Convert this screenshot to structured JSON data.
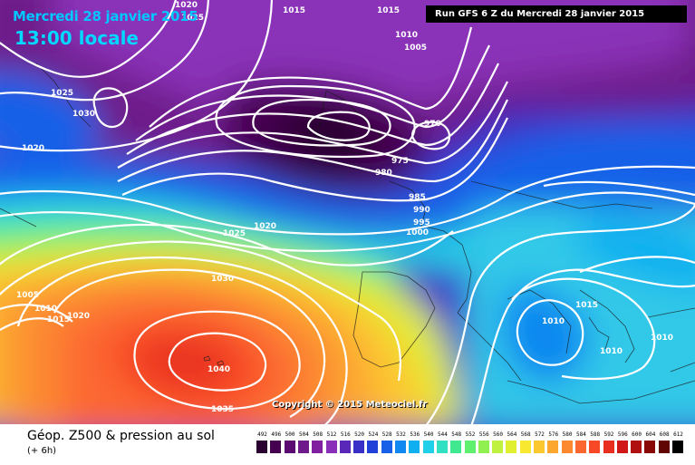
{
  "header": {
    "date_title": "Mercredi 28 janvier 2015",
    "time_title": "13:00 locale",
    "run_info": "Run GFS 6 Z du Mercredi 28 janvier 2015"
  },
  "copyright": "Copyright © 2015 Meteociel.fr",
  "footer": {
    "title": "Géop. Z500 & pression au sol",
    "subtitle": "(+ 6h)"
  },
  "legend": {
    "values": [
      "492",
      "496",
      "500",
      "504",
      "508",
      "512",
      "516",
      "520",
      "524",
      "528",
      "532",
      "536",
      "540",
      "544",
      "548",
      "552",
      "556",
      "560",
      "564",
      "568",
      "572",
      "576",
      "580",
      "584",
      "588",
      "592",
      "596",
      "600",
      "604",
      "608",
      "612"
    ],
    "colors": [
      "#2a0030",
      "#45004f",
      "#5a0a70",
      "#6e1a8a",
      "#8020a0",
      "#8a30b8",
      "#5a28b8",
      "#3a30c8",
      "#2040d8",
      "#1860e8",
      "#1088f0",
      "#10b0f0",
      "#20d0e8",
      "#30e0c0",
      "#40e890",
      "#60f070",
      "#90f050",
      "#c0f040",
      "#e0f030",
      "#f8e830",
      "#fcc830",
      "#fca830",
      "#fc8830",
      "#fc6830",
      "#f84828",
      "#e83020",
      "#d01818",
      "#b01010",
      "#880808",
      "#600404",
      "#000000"
    ]
  },
  "isobars": [
    "1020",
    "1025",
    "1015",
    "1015",
    "1010",
    "1005",
    "1025",
    "1030",
    "1020",
    "970",
    "975",
    "980",
    "985",
    "990",
    "995",
    "1000",
    "1020",
    "1025",
    "1030",
    "1005",
    "1010",
    "1015",
    "1020",
    "1040",
    "1035",
    "1015",
    "1010",
    "1010",
    "1010"
  ]
}
